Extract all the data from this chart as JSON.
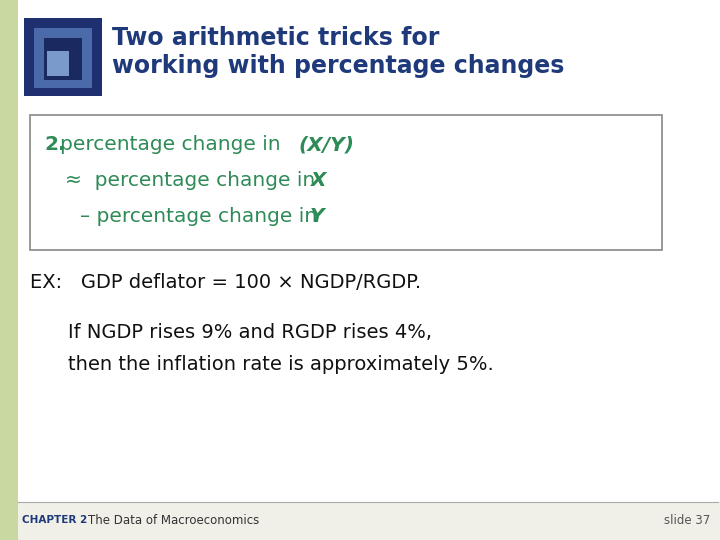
{
  "title_line1": "Two arithmetic tricks for",
  "title_line2": "working with percentage changes",
  "title_color": "#1F3A7A",
  "green_color": "#2E8B57",
  "ex_line": "EX:   GDP deflator = 100 × NGDP/RGDP.",
  "body_line1": "If NGDP rises 9% and RGDP rises 4%,",
  "body_line2": "then the inflation rate is approximately 5%.",
  "body_color": "#111111",
  "footer_chapter": "CHAPTER 2",
  "footer_title": "The Data of Macroeconomics",
  "footer_slide": "slide 37",
  "bg_color": "#f0f0e8",
  "left_bar_color": "#c8d8a0",
  "box_border_color": "#888888",
  "white": "#ffffff"
}
